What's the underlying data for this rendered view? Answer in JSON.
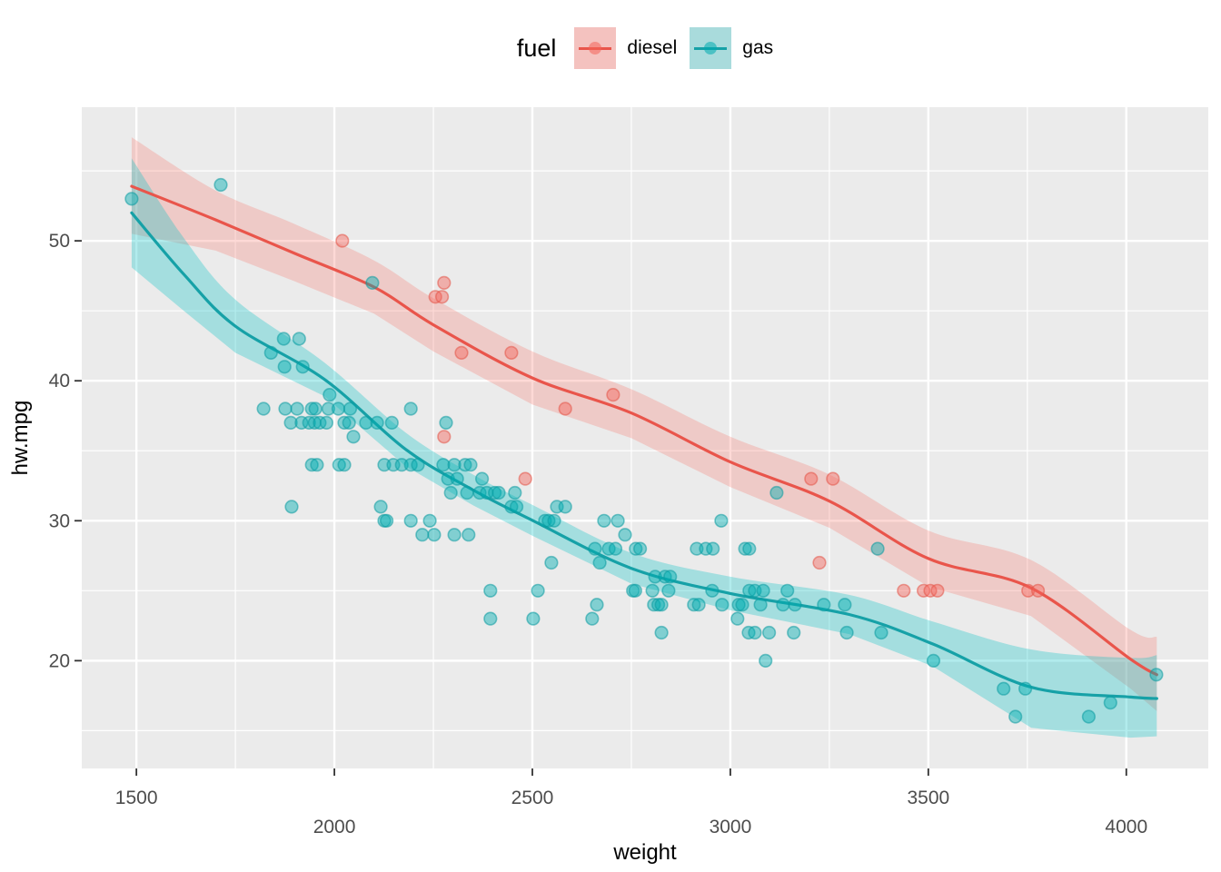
{
  "chart_data": {
    "type": "scatter",
    "title": "",
    "xlabel": "weight",
    "ylabel": "hw.mpg",
    "xlim": [
      1362,
      4207
    ],
    "ylim": [
      12.3,
      59.55
    ],
    "grid": "major and minor white gridlines on gray panel",
    "legend_position": "top",
    "legend": {
      "title": "fuel"
    },
    "x_ticks": [
      {
        "label": "1500",
        "value": 1500,
        "row": 0
      },
      {
        "label": "2000",
        "value": 2000,
        "row": 1
      },
      {
        "label": "2500",
        "value": 2500,
        "row": 0
      },
      {
        "label": "3000",
        "value": 3000,
        "row": 1
      },
      {
        "label": "3500",
        "value": 3500,
        "row": 0
      },
      {
        "label": "4000",
        "value": 4000,
        "row": 1
      }
    ],
    "x_minor_gridlines": [
      1750,
      2250,
      2750,
      3250,
      3750
    ],
    "y_ticks": [
      {
        "label": "20",
        "value": 20
      },
      {
        "label": "30",
        "value": 30
      },
      {
        "label": "40",
        "value": 40
      },
      {
        "label": "50",
        "value": 50
      }
    ],
    "y_minor_gridlines": [
      15,
      25,
      35,
      45,
      55
    ],
    "style": {
      "panel_bg": "#EBEBEB",
      "grid_color": "#FFFFFF",
      "tick_mark_color": "#333333",
      "tick_label_color": "#4D4D4D",
      "axis_title_color": "#000000"
    },
    "series": [
      {
        "name": "diesel",
        "point_fill": "#F4645A",
        "point_stroke": "#E35549",
        "line_color": "#E9554B",
        "ribbon_color": "#F8766D",
        "ribbon_opacity": 0.28,
        "legend_key_fill": "#F4C2BF",
        "points": [
          [
            2020,
            50
          ],
          [
            2277,
            47
          ],
          [
            2255,
            46
          ],
          [
            2272,
            46
          ],
          [
            2321,
            42
          ],
          [
            2447,
            42
          ],
          [
            2704,
            39
          ],
          [
            2583,
            38
          ],
          [
            2277,
            36
          ],
          [
            2482,
            33
          ],
          [
            3204,
            33
          ],
          [
            3259,
            33
          ],
          [
            3225,
            27
          ],
          [
            3438,
            25
          ],
          [
            3488,
            25
          ],
          [
            3505,
            25
          ],
          [
            3523,
            25
          ],
          [
            3752,
            25
          ],
          [
            3777,
            25
          ]
        ],
        "smooth_line": [
          [
            1488,
            53.9
          ],
          [
            1700,
            51.5
          ],
          [
            1900,
            49.1
          ],
          [
            2100,
            46.7
          ],
          [
            2250,
            44.0
          ],
          [
            2500,
            40.2
          ],
          [
            2750,
            37.7
          ],
          [
            3000,
            34.2
          ],
          [
            3250,
            31.4
          ],
          [
            3500,
            27.3
          ],
          [
            3759,
            25.2
          ],
          [
            4011,
            20.1
          ],
          [
            4077,
            19.0
          ]
        ],
        "ribbon": [
          [
            1488,
            50.5,
            57.4
          ],
          [
            1700,
            49.3,
            53.6
          ],
          [
            1900,
            47.1,
            51.2
          ],
          [
            2100,
            44.8,
            48.6
          ],
          [
            2250,
            42.1,
            45.9
          ],
          [
            2500,
            38.3,
            42.1
          ],
          [
            2750,
            35.9,
            39.4
          ],
          [
            3000,
            32.4,
            36.0
          ],
          [
            3250,
            29.5,
            33.3
          ],
          [
            3500,
            25.3,
            29.3
          ],
          [
            3759,
            23.2,
            27.2
          ],
          [
            4011,
            18.0,
            22.2
          ],
          [
            4077,
            16.4,
            21.7
          ]
        ]
      },
      {
        "name": "gas",
        "point_fill": "#00ACB1",
        "point_stroke": "#0D9AA0",
        "line_color": "#16A1A7",
        "ribbon_color": "#00BFC4",
        "ribbon_opacity": 0.3,
        "legend_key_fill": "#A9DBDC",
        "points": [
          [
            1713,
            54
          ],
          [
            1488,
            53
          ],
          [
            2096,
            47
          ],
          [
            1872,
            43
          ],
          [
            1911,
            43
          ],
          [
            1840,
            42
          ],
          [
            1874,
            41
          ],
          [
            1920,
            41
          ],
          [
            1988,
            39
          ],
          [
            1821,
            38
          ],
          [
            1876,
            38
          ],
          [
            1906,
            38
          ],
          [
            1943,
            38
          ],
          [
            1952,
            38
          ],
          [
            1985,
            38
          ],
          [
            2010,
            38
          ],
          [
            2040,
            38
          ],
          [
            2193,
            38
          ],
          [
            1890,
            37
          ],
          [
            1917,
            37
          ],
          [
            1936,
            37
          ],
          [
            1950,
            37
          ],
          [
            1963,
            37
          ],
          [
            1980,
            37
          ],
          [
            2025,
            37
          ],
          [
            2037,
            37
          ],
          [
            2080,
            37
          ],
          [
            2108,
            37
          ],
          [
            2145,
            37
          ],
          [
            2282,
            37
          ],
          [
            2048,
            36
          ],
          [
            1943,
            34
          ],
          [
            1956,
            34
          ],
          [
            2012,
            34
          ],
          [
            2025,
            34
          ],
          [
            2126,
            34
          ],
          [
            2149,
            34
          ],
          [
            2170,
            34
          ],
          [
            2193,
            34
          ],
          [
            2211,
            34
          ],
          [
            2275,
            34
          ],
          [
            2303,
            34
          ],
          [
            2330,
            34
          ],
          [
            2344,
            34
          ],
          [
            2287,
            33
          ],
          [
            2310,
            33
          ],
          [
            2373,
            33
          ],
          [
            2294,
            32
          ],
          [
            2335,
            32
          ],
          [
            2367,
            32
          ],
          [
            2385,
            32
          ],
          [
            2405,
            32
          ],
          [
            2415,
            32
          ],
          [
            2456,
            32
          ],
          [
            3117,
            32
          ],
          [
            1892,
            31
          ],
          [
            2117,
            31
          ],
          [
            2447,
            31
          ],
          [
            2460,
            31
          ],
          [
            2562,
            31
          ],
          [
            2583,
            31
          ],
          [
            2126,
            30
          ],
          [
            2132,
            30
          ],
          [
            2193,
            30
          ],
          [
            2241,
            30
          ],
          [
            2532,
            30
          ],
          [
            2541,
            30
          ],
          [
            2555,
            30
          ],
          [
            2681,
            30
          ],
          [
            2716,
            30
          ],
          [
            2977,
            30
          ],
          [
            2222,
            29
          ],
          [
            2252,
            29
          ],
          [
            2303,
            29
          ],
          [
            2339,
            29
          ],
          [
            2734,
            29
          ],
          [
            2658,
            28
          ],
          [
            2693,
            28
          ],
          [
            2710,
            28
          ],
          [
            2761,
            28
          ],
          [
            2772,
            28
          ],
          [
            2915,
            28
          ],
          [
            2938,
            28
          ],
          [
            2956,
            28
          ],
          [
            3037,
            28
          ],
          [
            3048,
            28
          ],
          [
            3372,
            28
          ],
          [
            2548,
            27
          ],
          [
            2670,
            27
          ],
          [
            2810,
            26
          ],
          [
            2835,
            26
          ],
          [
            2848,
            26
          ],
          [
            2394,
            25
          ],
          [
            2514,
            25
          ],
          [
            2754,
            25
          ],
          [
            2760,
            25
          ],
          [
            2803,
            25
          ],
          [
            2844,
            25
          ],
          [
            2954,
            25
          ],
          [
            3048,
            25
          ],
          [
            3062,
            25
          ],
          [
            3083,
            25
          ],
          [
            3144,
            25
          ],
          [
            2663,
            24
          ],
          [
            2807,
            24
          ],
          [
            2818,
            24
          ],
          [
            2826,
            24
          ],
          [
            2908,
            24
          ],
          [
            2920,
            24
          ],
          [
            2979,
            24
          ],
          [
            3021,
            24
          ],
          [
            3030,
            24
          ],
          [
            3076,
            24
          ],
          [
            3133,
            24
          ],
          [
            3163,
            24
          ],
          [
            3236,
            24
          ],
          [
            3289,
            24
          ],
          [
            2394,
            23
          ],
          [
            2502,
            23
          ],
          [
            2651,
            23
          ],
          [
            3018,
            23
          ],
          [
            2826,
            22
          ],
          [
            3046,
            22
          ],
          [
            3062,
            22
          ],
          [
            3098,
            22
          ],
          [
            3160,
            22
          ],
          [
            3294,
            22
          ],
          [
            3381,
            22
          ],
          [
            3089,
            20
          ],
          [
            3513,
            20
          ],
          [
            4076,
            19
          ],
          [
            3690,
            18
          ],
          [
            3745,
            18
          ],
          [
            3960,
            17
          ],
          [
            3720,
            16
          ],
          [
            3905,
            16
          ]
        ],
        "smooth_line": [
          [
            1488,
            52.0
          ],
          [
            1620,
            47.6
          ],
          [
            1750,
            43.9
          ],
          [
            1975,
            40.1
          ],
          [
            2180,
            35.1
          ],
          [
            2350,
            32.2
          ],
          [
            2502,
            30.0
          ],
          [
            2750,
            26.6
          ],
          [
            3000,
            24.8
          ],
          [
            3300,
            23.3
          ],
          [
            3511,
            21.2
          ],
          [
            3760,
            18.1
          ],
          [
            4011,
            17.4
          ],
          [
            4077,
            17.3
          ]
        ],
        "ribbon": [
          [
            1488,
            48.1,
            55.9
          ],
          [
            1620,
            45.0,
            50.2
          ],
          [
            1750,
            42.0,
            45.8
          ],
          [
            1975,
            38.9,
            41.3
          ],
          [
            2180,
            33.9,
            36.3
          ],
          [
            2350,
            31.1,
            33.3
          ],
          [
            2502,
            28.9,
            31.1
          ],
          [
            2750,
            25.5,
            27.7
          ],
          [
            3000,
            23.6,
            26.0
          ],
          [
            3300,
            21.9,
            24.7
          ],
          [
            3511,
            19.6,
            22.8
          ],
          [
            3760,
            15.2,
            20.8
          ],
          [
            4011,
            14.5,
            20.2
          ],
          [
            4077,
            14.6,
            20.4
          ]
        ]
      }
    ]
  }
}
